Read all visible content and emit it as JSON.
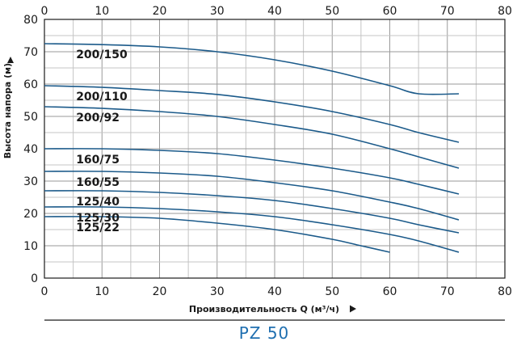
{
  "chart_data": {
    "type": "line",
    "title": "PZ 50",
    "xlabel": "Производительность Q (м³/ч)",
    "ylabel": "Высота напора (м)",
    "xlim": [
      0,
      80
    ],
    "ylim": [
      0,
      80
    ],
    "x_ticks": [
      0,
      10,
      20,
      30,
      40,
      50,
      60,
      70,
      80
    ],
    "y_ticks": [
      0,
      10,
      20,
      30,
      40,
      50,
      60,
      70,
      80
    ],
    "grid": true,
    "line_color": "#1b5a8a",
    "title_color": "#1f6fb0",
    "series": [
      {
        "name": "200/150",
        "x": [
          0,
          10,
          20,
          30,
          40,
          50,
          60,
          65,
          72
        ],
        "y": [
          72.5,
          72.2,
          71.5,
          70,
          67.5,
          64,
          59.5,
          57,
          57
        ]
      },
      {
        "name": "200/110",
        "x": [
          0,
          10,
          20,
          30,
          40,
          50,
          60,
          65,
          72
        ],
        "y": [
          59.5,
          59,
          58,
          56.8,
          54.5,
          51.5,
          47.5,
          45,
          42
        ]
      },
      {
        "name": "200/92",
        "x": [
          0,
          10,
          20,
          30,
          40,
          50,
          60,
          65,
          72
        ],
        "y": [
          53,
          52.5,
          51.5,
          50,
          47.5,
          44.5,
          40,
          37.5,
          34
        ]
      },
      {
        "name": "160/75",
        "x": [
          0,
          10,
          20,
          30,
          40,
          50,
          60,
          65,
          72
        ],
        "y": [
          40,
          40,
          39.5,
          38.5,
          36.5,
          34,
          31,
          29,
          26
        ]
      },
      {
        "name": "160/55",
        "x": [
          0,
          10,
          20,
          30,
          40,
          50,
          60,
          65,
          72
        ],
        "y": [
          33,
          33,
          32.5,
          31.5,
          29.5,
          27,
          23.5,
          21.5,
          18
        ]
      },
      {
        "name": "125/40",
        "x": [
          0,
          10,
          20,
          30,
          40,
          50,
          60,
          65,
          72
        ],
        "y": [
          27,
          27,
          26.5,
          25.5,
          24,
          21.5,
          18.5,
          16.5,
          14
        ]
      },
      {
        "name": "125/30",
        "x": [
          0,
          10,
          20,
          30,
          40,
          50,
          60,
          65,
          72
        ],
        "y": [
          22,
          22,
          21.5,
          20.5,
          19,
          16.5,
          13.5,
          11.5,
          8
        ]
      },
      {
        "name": "125/22",
        "x": [
          0,
          10,
          20,
          30,
          40,
          50,
          55,
          60
        ],
        "y": [
          19,
          19,
          18.5,
          17,
          15,
          12,
          10,
          8
        ]
      }
    ]
  }
}
